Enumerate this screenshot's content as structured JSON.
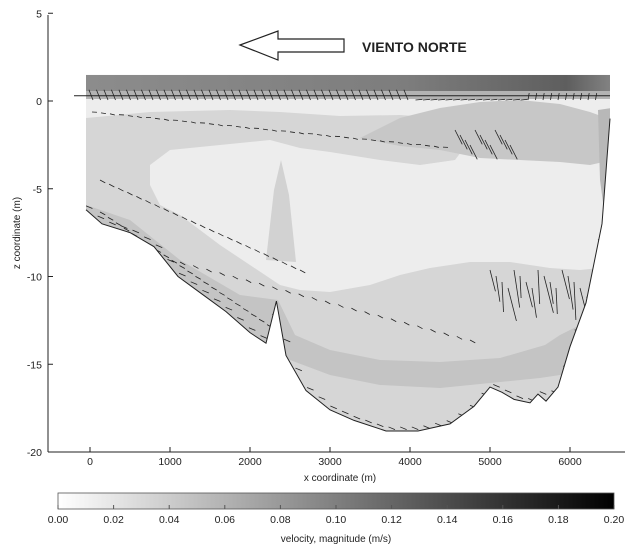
{
  "chart_data": {
    "type": "heatmap",
    "xlabel": "x coordinate (m)",
    "ylabel": "z coordinate (m)",
    "xlim": [
      -500,
      6600
    ],
    "ylim": [
      -20,
      5
    ],
    "x_ticks": [
      0,
      1000,
      2000,
      3000,
      4000,
      5000,
      6000
    ],
    "y_ticks": [
      5,
      0,
      -5,
      -10,
      -15,
      -20
    ],
    "annotation": "VIENTO NORTE",
    "colorbar": {
      "label": "velocity, magnitude (m/s)",
      "range": [
        0.0,
        0.2
      ],
      "ticks": [
        "0.00",
        "0.02",
        "0.04",
        "0.06",
        "0.08",
        "0.10",
        "0.12",
        "0.14",
        "0.16",
        "0.18",
        "0.20"
      ],
      "colors": [
        "#ffffff",
        "#000000"
      ]
    },
    "bottom_profile": [
      [
        -50,
        -6.2
      ],
      [
        150,
        -7.0
      ],
      [
        500,
        -7.5
      ],
      [
        800,
        -8.3
      ],
      [
        1100,
        -10.0
      ],
      [
        1400,
        -11.0
      ],
      [
        1700,
        -12.0
      ],
      [
        2000,
        -13.2
      ],
      [
        2200,
        -13.8
      ],
      [
        2330,
        -11.4
      ],
      [
        2450,
        -14.5
      ],
      [
        2700,
        -16.5
      ],
      [
        3000,
        -17.6
      ],
      [
        3300,
        -18.2
      ],
      [
        3700,
        -18.8
      ],
      [
        4100,
        -18.8
      ],
      [
        4500,
        -18.4
      ],
      [
        4800,
        -17.4
      ],
      [
        5000,
        -16.3
      ],
      [
        5150,
        -16.6
      ],
      [
        5300,
        -17.0
      ],
      [
        5500,
        -17.2
      ],
      [
        5600,
        -16.7
      ],
      [
        5700,
        -17.1
      ],
      [
        5850,
        -16.3
      ],
      [
        6000,
        -14.0
      ],
      [
        6200,
        -11.5
      ],
      [
        6400,
        -7.0
      ],
      [
        6500,
        -1.0
      ]
    ],
    "surface_level": 0.3,
    "top_band": [
      1.5,
      0.2
    ]
  }
}
